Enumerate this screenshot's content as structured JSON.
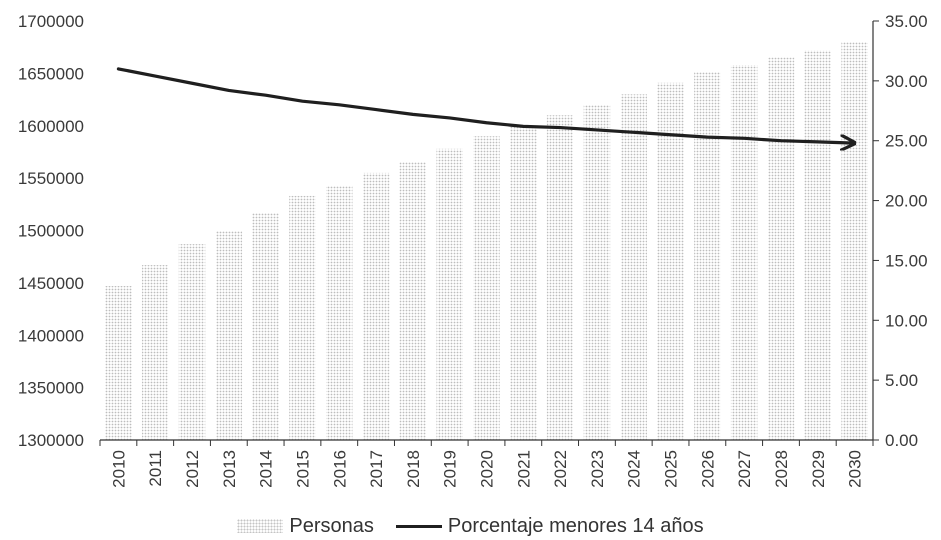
{
  "chart_data": {
    "type": "bar",
    "categories": [
      "2010",
      "2011",
      "2012",
      "2013",
      "2014",
      "2015",
      "2016",
      "2017",
      "2018",
      "2019",
      "2020",
      "2021",
      "2022",
      "2023",
      "2024",
      "2025",
      "2026",
      "2027",
      "2028",
      "2029",
      "2030"
    ],
    "series": [
      {
        "name": "Personas",
        "type": "bar",
        "axis": "left",
        "values": [
          1447000,
          1467000,
          1487000,
          1500000,
          1517000,
          1533000,
          1543000,
          1555000,
          1565000,
          1578000,
          1590000,
          1600000,
          1610000,
          1620000,
          1630000,
          1641000,
          1651000,
          1658000,
          1665000,
          1672000,
          1680000
        ]
      },
      {
        "name": "Porcentaje menores 14 años",
        "type": "line",
        "axis": "right",
        "values": [
          31.0,
          30.4,
          29.8,
          29.2,
          28.8,
          28.3,
          28.0,
          27.6,
          27.2,
          26.9,
          26.5,
          26.2,
          26.1,
          25.9,
          25.7,
          25.5,
          25.3,
          25.2,
          25.0,
          24.9,
          24.8
        ]
      }
    ],
    "y_left": {
      "min": 1300000,
      "max": 1700000,
      "ticks": [
        "1300000",
        "1350000",
        "1400000",
        "1450000",
        "1500000",
        "1550000",
        "1600000",
        "1650000",
        "1700000"
      ]
    },
    "y_right": {
      "min": 0,
      "max": 35,
      "ticks": [
        "0.00",
        "5.00",
        "10.00",
        "15.00",
        "20.00",
        "25.00",
        "30.00",
        "35.00"
      ]
    },
    "grid": false,
    "legend_position": "bottom",
    "colors": {
      "bars": "#c4c4c4",
      "line": "#1f1f1f",
      "axis": "#333333"
    }
  },
  "legend": {
    "bar_label": "Personas",
    "line_label": "Porcentaje menores 14 años"
  }
}
